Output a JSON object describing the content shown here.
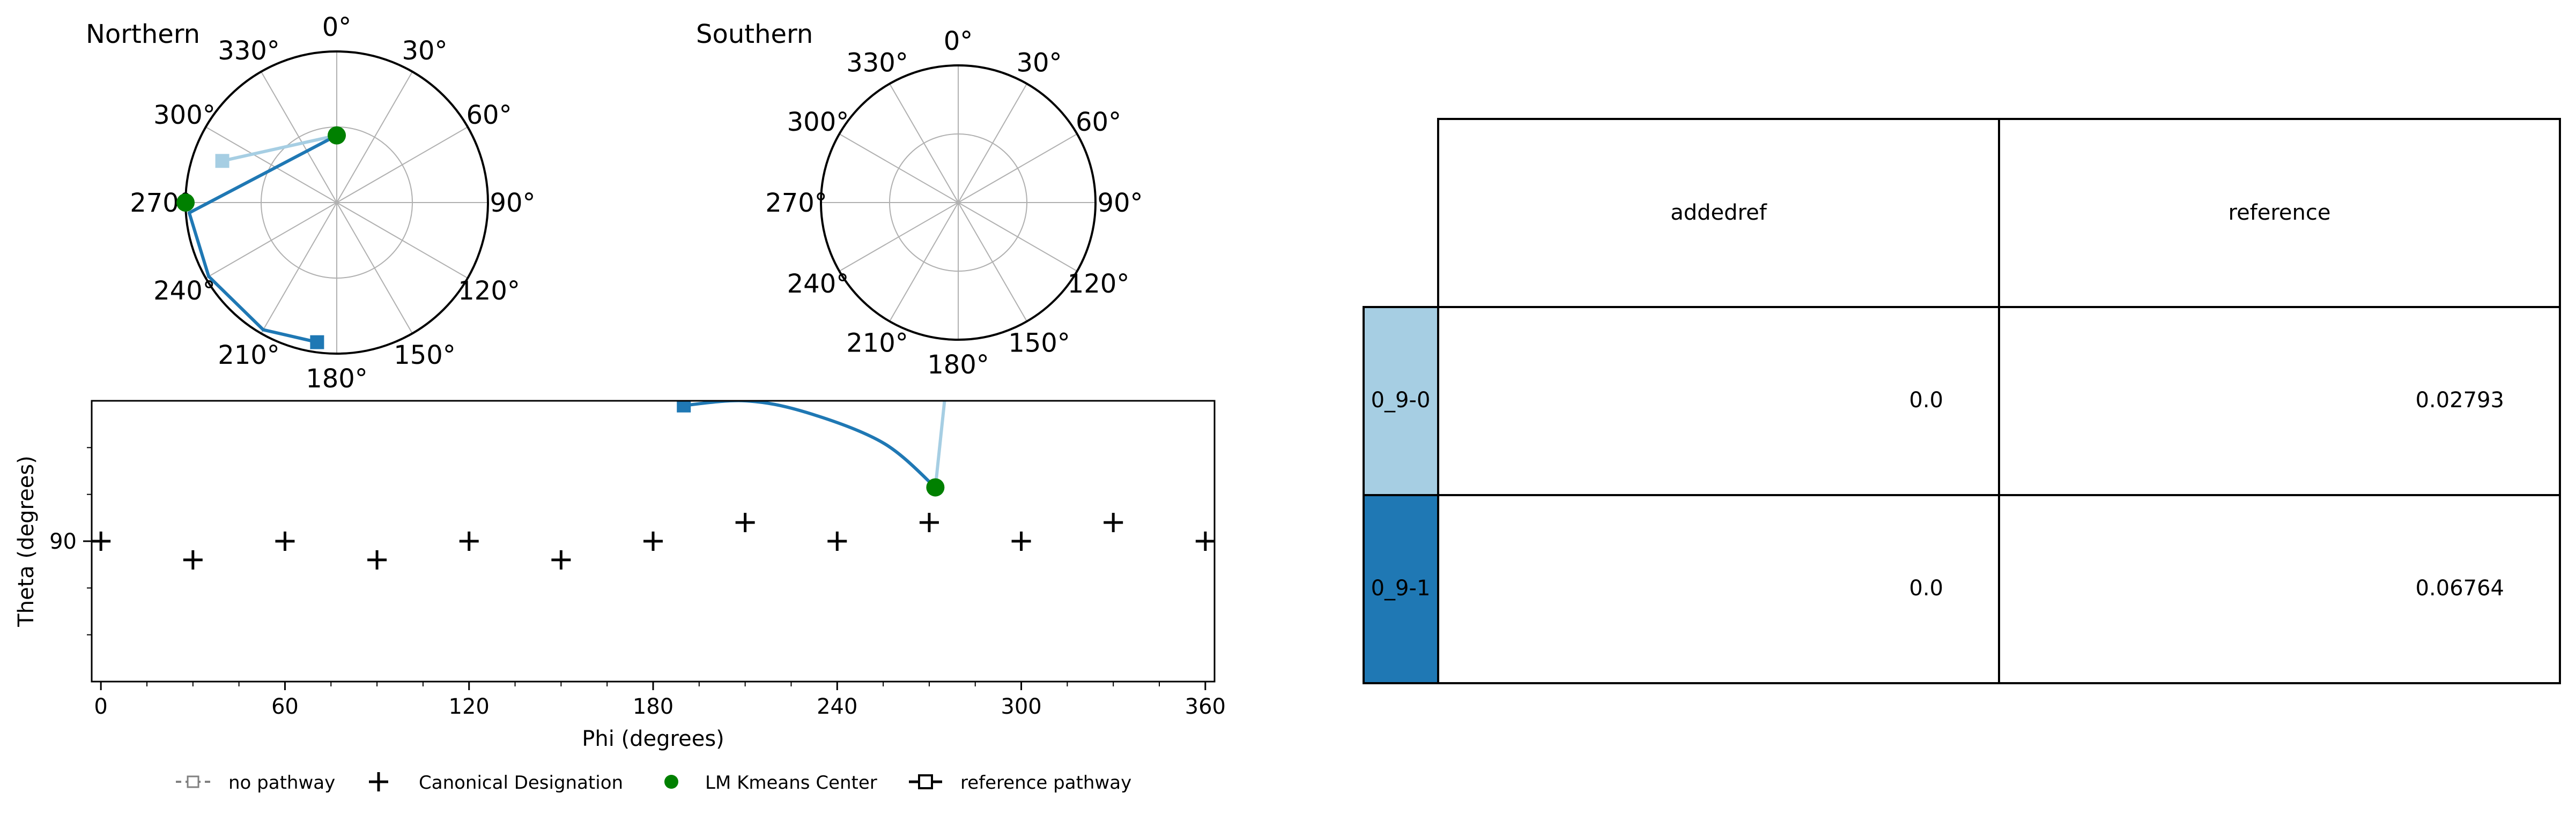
{
  "polar_plots": [
    {
      "title": "Northern",
      "angle_labels": [
        "0°",
        "30°",
        "60°",
        "90°",
        "120°",
        "150°",
        "180°",
        "210°",
        "240°",
        "270°",
        "300°",
        "330°"
      ],
      "paths": [
        {
          "pathway": "0_9-0",
          "color": "#a6cee3",
          "points": [
            {
              "phi": 0,
              "theta": 80
            },
            {
              "phi": 290,
              "theta": 145
            }
          ],
          "end_marker": {
            "phi": 290,
            "theta": 145
          }
        },
        {
          "pathway": "0_9-1",
          "color": "#1f78b4",
          "points": [
            {
              "phi": 0,
              "theta": 80
            },
            {
              "phi": 266,
              "theta": 176
            },
            {
              "phi": 240,
              "theta": 176
            },
            {
              "phi": 210,
              "theta": 175
            },
            {
              "phi": 188,
              "theta": 168
            }
          ],
          "end_marker": {
            "phi": 188,
            "theta": 168
          }
        }
      ],
      "centers": [
        {
          "phi": 270,
          "theta": 180
        },
        {
          "phi": 0,
          "theta": 80
        }
      ]
    },
    {
      "title": "Southern",
      "angle_labels": [
        "0°",
        "30°",
        "60°",
        "90°",
        "120°",
        "150°",
        "180°",
        "210°",
        "240°",
        "270°",
        "300°",
        "330°"
      ],
      "paths": [],
      "centers": []
    }
  ],
  "chart_data": {
    "type": "scatter",
    "xlabel": "Phi (degrees)",
    "ylabel": "Theta (degrees)",
    "xlim": [
      -3,
      363
    ],
    "ylim": [
      150,
      30
    ],
    "x_ticks": [
      0,
      60,
      120,
      180,
      240,
      300,
      360
    ],
    "x_minor_ticks": [
      15,
      30,
      45,
      75,
      90,
      105,
      135,
      150,
      165,
      195,
      210,
      225,
      255,
      270,
      285,
      315,
      330,
      345
    ],
    "y_ticks": [
      90
    ],
    "y_minor_ticks": [
      50,
      70,
      110,
      130
    ],
    "canonical_designations": [
      {
        "phi": 0,
        "theta": 90
      },
      {
        "phi": 30,
        "theta": 98
      },
      {
        "phi": 60,
        "theta": 90
      },
      {
        "phi": 90,
        "theta": 98
      },
      {
        "phi": 120,
        "theta": 90
      },
      {
        "phi": 150,
        "theta": 98
      },
      {
        "phi": 180,
        "theta": 90
      },
      {
        "phi": 210,
        "theta": 82
      },
      {
        "phi": 240,
        "theta": 90
      },
      {
        "phi": 270,
        "theta": 82
      },
      {
        "phi": 300,
        "theta": 90
      },
      {
        "phi": 330,
        "theta": 82
      },
      {
        "phi": 360,
        "theta": 90
      }
    ],
    "series": [
      {
        "pathway": "0_9-0",
        "color": "#a6cee3",
        "points": [
          {
            "phi": 272,
            "theta": 67
          },
          {
            "phi": 275,
            "theta": 30
          }
        ]
      },
      {
        "pathway": "0_9-1",
        "color": "#1f78b4",
        "points": [
          {
            "phi": 190,
            "theta": 32
          },
          {
            "phi": 210,
            "theta": 30
          },
          {
            "phi": 230,
            "theta": 35
          },
          {
            "phi": 255,
            "theta": 48
          },
          {
            "phi": 272,
            "theta": 67
          }
        ],
        "start_marker": {
          "phi": 190,
          "theta": 32
        }
      }
    ],
    "centers": [
      {
        "phi": 272,
        "theta": 67
      }
    ]
  },
  "legend": [
    {
      "label": "no pathway",
      "marker": "dashed-square"
    },
    {
      "label": "Canonical Designation",
      "marker": "plus"
    },
    {
      "label": "LM Kmeans Center",
      "marker": "green-dot"
    },
    {
      "label": "reference pathway",
      "marker": "line-square"
    }
  ],
  "table": {
    "columns": [
      "addedref",
      "reference"
    ],
    "rows": [
      {
        "label": "0_9-0",
        "color": "#a6cee3",
        "values": [
          "0.0",
          "0.02793"
        ]
      },
      {
        "label": "0_9-1",
        "color": "#1f78b4",
        "values": [
          "0.0",
          "0.06764"
        ]
      }
    ]
  },
  "colors": {
    "center": "#008000",
    "grid": "#b0b0b0"
  }
}
